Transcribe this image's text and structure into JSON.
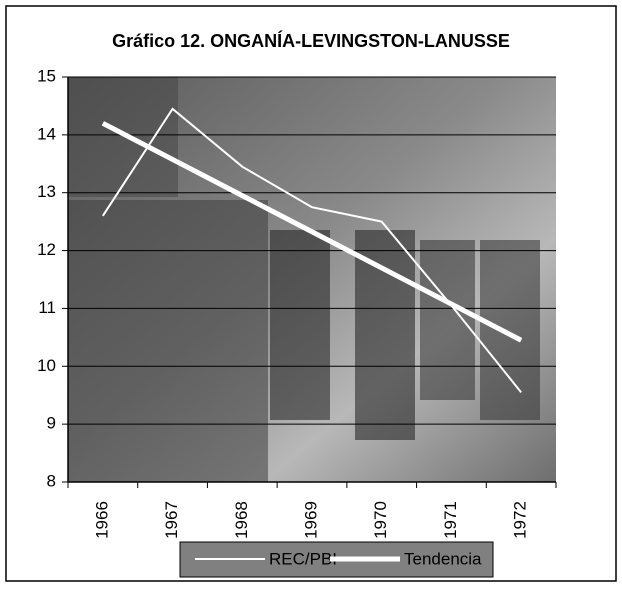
{
  "chart_data": {
    "type": "line",
    "title": "Gráfico 12. ONGANÍA-LEVINGSTON-LANUSSE",
    "categories": [
      "1966",
      "1967",
      "1968",
      "1969",
      "1970",
      "1971",
      "1972"
    ],
    "series": [
      {
        "name": "REC/PBI",
        "color": "#ffffff",
        "values": [
          12.6,
          14.45,
          13.45,
          12.75,
          12.5,
          11.05,
          9.55
        ]
      },
      {
        "name": "Tendencia",
        "color": "#ffffff",
        "values": [
          14.2,
          13.575,
          12.95,
          12.325,
          11.7,
          11.075,
          10.45
        ]
      }
    ],
    "ylim": [
      8,
      15
    ],
    "yticks": [
      8,
      9,
      10,
      11,
      12,
      13,
      14,
      15
    ],
    "grid": true,
    "legend": "bottom"
  }
}
